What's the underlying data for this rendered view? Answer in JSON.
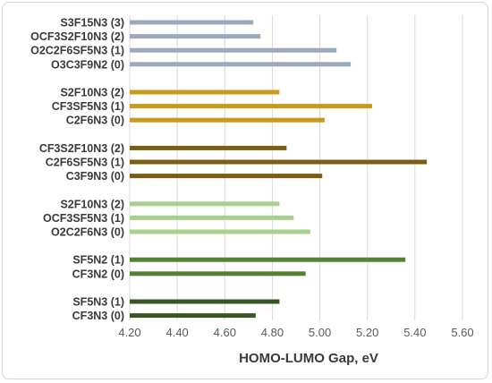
{
  "chart_data": {
    "type": "bar",
    "orientation": "horizontal",
    "xlabel": "HOMO-LUMO Gap, eV",
    "xlim": [
      4.2,
      5.6
    ],
    "xticks": [
      "4.20",
      "4.40",
      "4.60",
      "4.80",
      "5.00",
      "5.20",
      "5.40",
      "5.60"
    ],
    "grid": true,
    "groups": [
      {
        "color": "#9aa9bb",
        "items": [
          {
            "label": "S3F15N3 (3)",
            "value": 4.72
          },
          {
            "label": "OCF3S2F10N3 (2)",
            "value": 4.75
          },
          {
            "label": "O2C2F6SF5N3 (1)",
            "value": 5.07
          },
          {
            "label": "O3C3F9N2 (0)",
            "value": 5.13
          }
        ]
      },
      {
        "color": "#c99a1c",
        "items": [
          {
            "label": "S2F10N3 (2)",
            "value": 4.83
          },
          {
            "label": "CF3SF5N3 (1)",
            "value": 5.22
          },
          {
            "label": "C2F6N3 (0)",
            "value": 5.02
          }
        ]
      },
      {
        "color": "#7a5c12",
        "items": [
          {
            "label": "CF3S2F10N3 (2)",
            "value": 4.86
          },
          {
            "label": "C2F6SF5N3 (1)",
            "value": 5.45
          },
          {
            "label": "C3F9N3 (0)",
            "value": 5.01
          }
        ]
      },
      {
        "color": "#a9d18e",
        "items": [
          {
            "label": "S2F10N3 (2)",
            "value": 4.83
          },
          {
            "label": "OCF3SF5N3 (1)",
            "value": 4.89
          },
          {
            "label": "O2C2F6N3 (0)",
            "value": 4.96
          }
        ]
      },
      {
        "color": "#548235",
        "items": [
          {
            "label": "SF5N2 (1)",
            "value": 5.36
          },
          {
            "label": "CF3N2 (0)",
            "value": 4.94
          }
        ]
      },
      {
        "color": "#375623",
        "items": [
          {
            "label": "SF5N3 (1)",
            "value": 4.83
          },
          {
            "label": "CF3N3 (0)",
            "value": 4.73
          }
        ]
      }
    ]
  }
}
